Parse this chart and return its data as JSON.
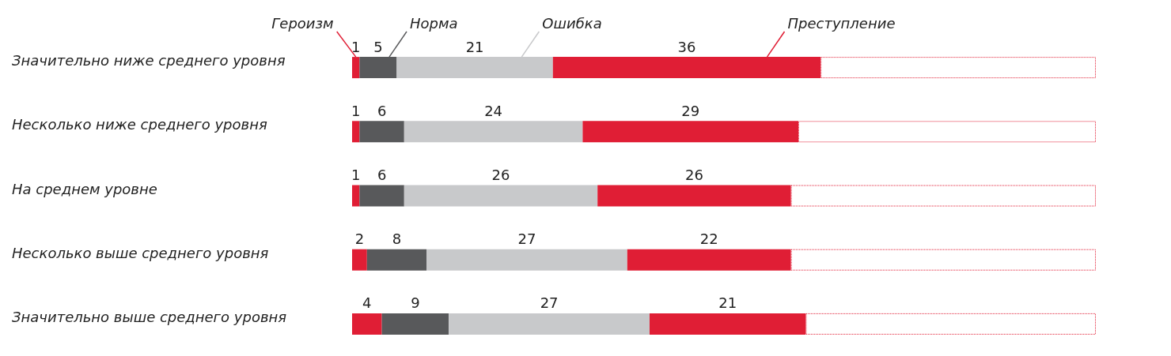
{
  "chart_data": {
    "type": "bar",
    "orientation": "horizontal",
    "stacked": true,
    "legend": false,
    "categories": [
      "Значительно ниже среднего уровня",
      "Несколько ниже среднего уровня",
      "На среднем уровне",
      "Несколько выше среднего уровня",
      "Значительно выше среднего уровня"
    ],
    "series": [
      {
        "name": "Героизм",
        "color": "#e01e35",
        "values": [
          1,
          1,
          1,
          2,
          4
        ],
        "value_labels": [
          "1",
          "1",
          "1",
          "2",
          "4"
        ]
      },
      {
        "name": "Норма",
        "color": "#58595b",
        "values": [
          5,
          6,
          6,
          8,
          9
        ],
        "value_labels": [
          "5",
          "6",
          "6",
          "8",
          "9"
        ]
      },
      {
        "name": "Ошибка",
        "color": "#c8c9cb",
        "values": [
          21,
          24,
          26,
          27,
          27
        ],
        "value_labels": [
          "21",
          "24",
          "26",
          "27",
          "27"
        ]
      },
      {
        "name": "Преступление",
        "color": "#e01e35",
        "values": [
          36,
          29,
          26,
          22,
          21
        ],
        "value_labels": [
          "36",
          "29",
          "26",
          "22",
          "21"
        ]
      },
      {
        "color": "#e01e35",
        "line_style": "dotted",
        "values": [
          37,
          40,
          41,
          41,
          39
        ]
      }
    ]
  }
}
